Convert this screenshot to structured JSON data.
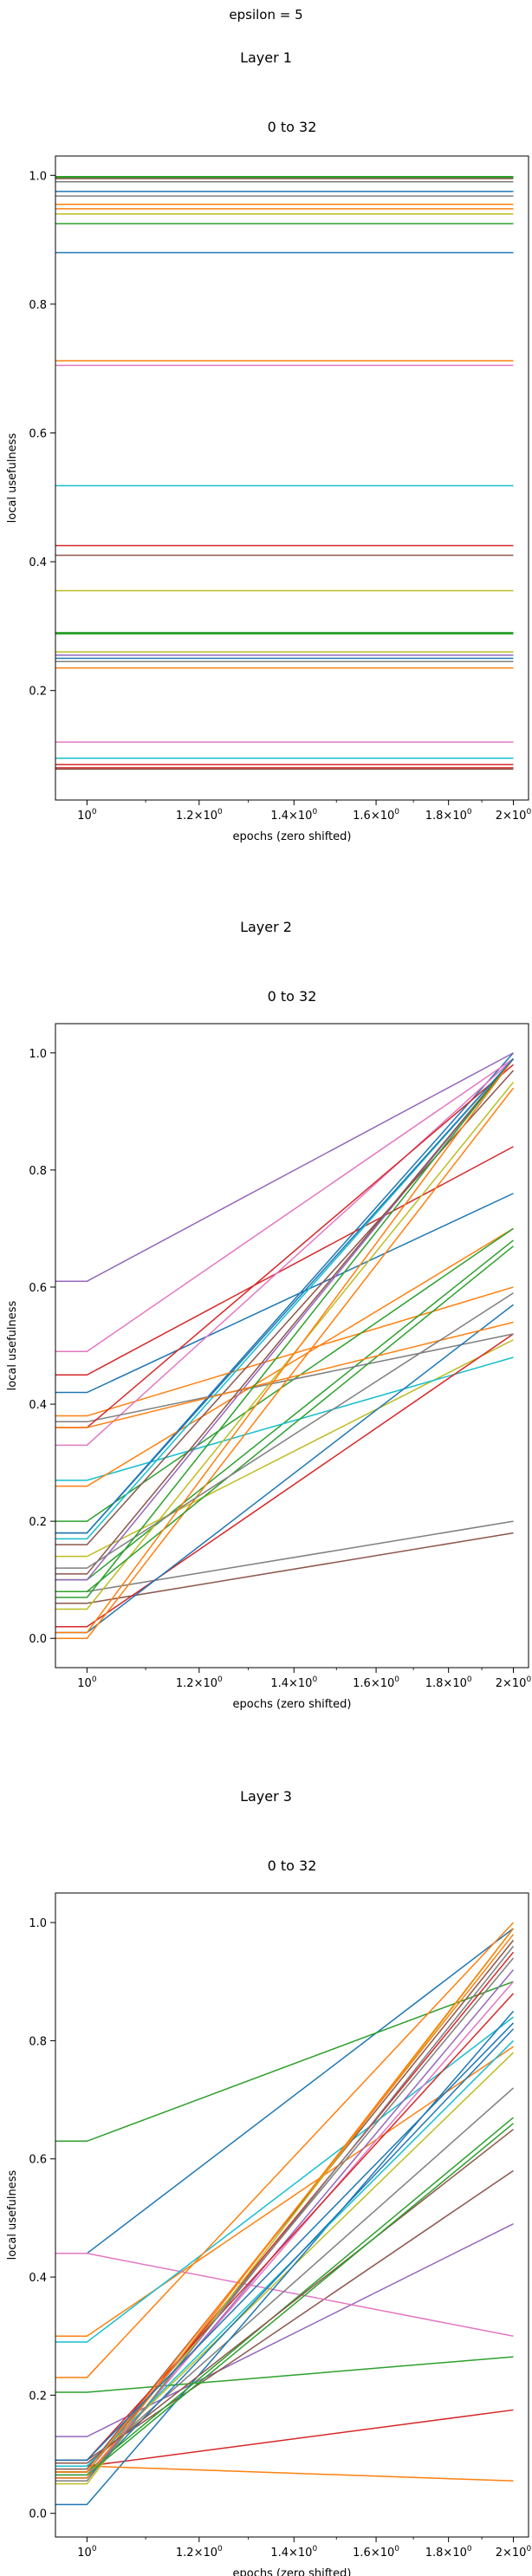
{
  "figure_title": "epsilon = 5",
  "chart_data": [
    {
      "type": "line",
      "suptitle": "Layer 1",
      "title": "0 to 32",
      "xlabel": "epochs (zero shifted)",
      "ylabel": "local usefulness",
      "xscale": "log",
      "xlim": [
        0.95,
        2.05
      ],
      "ylim": [
        0.03,
        1.03
      ],
      "x_ticks": [
        1.0,
        1.2,
        1.4,
        1.6,
        1.8,
        2.0
      ],
      "x_tick_labels": [
        "10^0",
        "1.2×10^0",
        "1.4×10^0",
        "1.6×10^0",
        "1.8×10^0",
        "2×10^0"
      ],
      "y_ticks": [
        0.2,
        0.4,
        0.6,
        0.8,
        1.0
      ],
      "y_tick_labels": [
        "0.2",
        "0.4",
        "0.6",
        "0.8",
        "1.0"
      ],
      "grid": false,
      "x": [
        0.95,
        1.0,
        2.0
      ],
      "series": [
        {
          "color": "#1f77b4",
          "values": [
            0.88,
            0.88,
            0.88
          ]
        },
        {
          "color": "#ff7f0e",
          "values": [
            0.712,
            0.712,
            0.712
          ]
        },
        {
          "color": "#2ca02c",
          "values": [
            0.996,
            0.996,
            0.996
          ]
        },
        {
          "color": "#d62728",
          "values": [
            0.425,
            0.425,
            0.425
          ]
        },
        {
          "color": "#9467bd",
          "values": [
            0.99,
            0.99,
            0.99
          ]
        },
        {
          "color": "#8c564b",
          "values": [
            0.995,
            0.995,
            0.995
          ]
        },
        {
          "color": "#e377c2",
          "values": [
            0.705,
            0.705,
            0.705
          ]
        },
        {
          "color": "#7f7f7f",
          "values": [
            0.245,
            0.245,
            0.245
          ]
        },
        {
          "color": "#bcbd22",
          "values": [
            0.355,
            0.355,
            0.355
          ]
        },
        {
          "color": "#17becf",
          "values": [
            0.518,
            0.518,
            0.518
          ]
        },
        {
          "color": "#1f77b4",
          "values": [
            0.975,
            0.975,
            0.975
          ]
        },
        {
          "color": "#ff7f0e",
          "values": [
            0.955,
            0.955,
            0.955
          ]
        },
        {
          "color": "#2ca02c",
          "values": [
            0.925,
            0.925,
            0.925
          ]
        },
        {
          "color": "#d62728",
          "values": [
            0.08,
            0.08,
            0.08
          ]
        },
        {
          "color": "#9467bd",
          "values": [
            0.255,
            0.255,
            0.255
          ]
        },
        {
          "color": "#8c564b",
          "values": [
            0.41,
            0.41,
            0.41
          ]
        },
        {
          "color": "#e377c2",
          "values": [
            0.12,
            0.12,
            0.12
          ]
        },
        {
          "color": "#7f7f7f",
          "values": [
            0.99,
            0.99,
            0.99
          ]
        },
        {
          "color": "#bcbd22",
          "values": [
            0.94,
            0.94,
            0.94
          ]
        },
        {
          "color": "#17becf",
          "values": [
            0.095,
            0.095,
            0.095
          ]
        },
        {
          "color": "#1f77b4",
          "values": [
            0.25,
            0.25,
            0.25
          ]
        },
        {
          "color": "#ff7f0e",
          "values": [
            0.235,
            0.235,
            0.235
          ]
        },
        {
          "color": "#2ca02c",
          "values": [
            0.288,
            0.288,
            0.288
          ]
        },
        {
          "color": "#d62728",
          "values": [
            0.085,
            0.085,
            0.085
          ]
        },
        {
          "color": "#ff7f0e",
          "values": [
            0.948,
            0.948,
            0.948
          ]
        },
        {
          "color": "#8c564b",
          "values": [
            0.078,
            0.078,
            0.078
          ]
        },
        {
          "color": "#7f7f7f",
          "values": [
            0.968,
            0.968,
            0.968
          ]
        },
        {
          "color": "#2ca02c",
          "values": [
            0.998,
            0.998,
            0.998
          ]
        },
        {
          "color": "#bcbd22",
          "values": [
            0.26,
            0.26,
            0.26
          ]
        },
        {
          "color": "#2ca02c",
          "values": [
            0.29,
            0.29,
            0.29
          ]
        }
      ]
    },
    {
      "type": "line",
      "suptitle": "Layer 2",
      "title": "0 to 32",
      "xlabel": "epochs (zero shifted)",
      "ylabel": "local usefulness",
      "xscale": "log",
      "xlim": [
        0.95,
        2.05
      ],
      "ylim": [
        -0.05,
        1.05
      ],
      "x_ticks": [
        1.0,
        1.2,
        1.4,
        1.6,
        1.8,
        2.0
      ],
      "x_tick_labels": [
        "10^0",
        "1.2×10^0",
        "1.4×10^0",
        "1.6×10^0",
        "1.8×10^0",
        "2×10^0"
      ],
      "y_ticks": [
        0.0,
        0.2,
        0.4,
        0.6,
        0.8,
        1.0
      ],
      "y_tick_labels": [
        "0.0",
        "0.2",
        "0.4",
        "0.6",
        "0.8",
        "1.0"
      ],
      "grid": false,
      "x": [
        0.95,
        1.0,
        2.0
      ],
      "series": [
        {
          "color": "#1f77b4",
          "values": [
            0.18,
            0.18,
            1.0
          ]
        },
        {
          "color": "#ff7f0e",
          "values": [
            0.38,
            0.38,
            0.6
          ]
        },
        {
          "color": "#2ca02c",
          "values": [
            0.1,
            0.1,
            0.68
          ]
        },
        {
          "color": "#d62728",
          "values": [
            0.45,
            0.45,
            0.84
          ]
        },
        {
          "color": "#9467bd",
          "values": [
            0.61,
            0.61,
            1.0
          ]
        },
        {
          "color": "#8c564b",
          "values": [
            0.06,
            0.06,
            0.18
          ]
        },
        {
          "color": "#e377c2",
          "values": [
            0.49,
            0.49,
            0.99
          ]
        },
        {
          "color": "#7f7f7f",
          "values": [
            0.08,
            0.08,
            0.2
          ]
        },
        {
          "color": "#bcbd22",
          "values": [
            0.14,
            0.14,
            0.51
          ]
        },
        {
          "color": "#17becf",
          "values": [
            0.27,
            0.27,
            0.48
          ]
        },
        {
          "color": "#1f77b4",
          "values": [
            0.42,
            0.42,
            0.76
          ]
        },
        {
          "color": "#ff7f0e",
          "values": [
            0.26,
            0.26,
            0.7
          ]
        },
        {
          "color": "#2ca02c",
          "values": [
            0.2,
            0.2,
            0.7
          ]
        },
        {
          "color": "#d62728",
          "values": [
            0.02,
            0.02,
            0.52
          ]
        },
        {
          "color": "#9467bd",
          "values": [
            0.1,
            0.1,
            0.99
          ]
        },
        {
          "color": "#8c564b",
          "values": [
            0.16,
            0.16,
            0.97
          ]
        },
        {
          "color": "#e377c2",
          "values": [
            0.33,
            0.33,
            0.99
          ]
        },
        {
          "color": "#7f7f7f",
          "values": [
            0.37,
            0.37,
            0.52
          ]
        },
        {
          "color": "#bcbd22",
          "values": [
            0.05,
            0.05,
            0.95
          ]
        },
        {
          "color": "#17becf",
          "values": [
            0.17,
            0.17,
            0.99
          ]
        },
        {
          "color": "#1f77b4",
          "values": [
            0.01,
            0.01,
            0.57
          ]
        },
        {
          "color": "#ff7f0e",
          "values": [
            0.0,
            0.0,
            0.94
          ]
        },
        {
          "color": "#2ca02c",
          "values": [
            0.08,
            0.08,
            0.67
          ]
        },
        {
          "color": "#d62728",
          "values": [
            0.36,
            0.36,
            0.98
          ]
        },
        {
          "color": "#ff7f0e",
          "values": [
            0.36,
            0.36,
            0.54
          ]
        },
        {
          "color": "#8c564b",
          "values": [
            0.11,
            0.11,
            0.99
          ]
        },
        {
          "color": "#7f7f7f",
          "values": [
            0.12,
            0.12,
            0.59
          ]
        },
        {
          "color": "#2ca02c",
          "values": [
            0.07,
            0.07,
            0.99
          ]
        },
        {
          "color": "#ff7f0e",
          "values": [
            0.01,
            0.01,
            0.99
          ]
        },
        {
          "color": "#1f77b4",
          "values": [
            0.18,
            0.18,
            0.99
          ]
        }
      ]
    },
    {
      "type": "line",
      "suptitle": "Layer 3",
      "title": "0 to 32",
      "xlabel": "epochs (zero shifted)",
      "ylabel": "local usefulness",
      "xscale": "log",
      "xlim": [
        0.95,
        2.05
      ],
      "ylim": [
        -0.04,
        1.05
      ],
      "x_ticks": [
        1.0,
        1.2,
        1.4,
        1.6,
        1.8,
        2.0
      ],
      "x_tick_labels": [
        "10^0",
        "1.2×10^0",
        "1.4×10^0",
        "1.6×10^0",
        "1.8×10^0",
        "2×10^0"
      ],
      "y_ticks": [
        0.0,
        0.2,
        0.4,
        0.6,
        0.8,
        1.0
      ],
      "y_tick_labels": [
        "0.0",
        "0.2",
        "0.4",
        "0.6",
        "0.8",
        "1.0"
      ],
      "grid": false,
      "x": [
        0.95,
        1.0,
        2.0
      ],
      "series": [
        {
          "color": "#1f77b4",
          "values": [
            0.44,
            0.44,
            0.99
          ]
        },
        {
          "color": "#ff7f0e",
          "values": [
            0.3,
            0.3,
            0.79
          ]
        },
        {
          "color": "#2ca02c",
          "values": [
            0.63,
            0.63,
            0.9
          ]
        },
        {
          "color": "#d62728",
          "values": [
            0.08,
            0.08,
            0.175
          ]
        },
        {
          "color": "#9467bd",
          "values": [
            0.13,
            0.13,
            0.49
          ]
        },
        {
          "color": "#8c564b",
          "values": [
            0.09,
            0.09,
            0.58
          ]
        },
        {
          "color": "#e377c2",
          "values": [
            0.44,
            0.44,
            0.3
          ]
        },
        {
          "color": "#7f7f7f",
          "values": [
            0.08,
            0.08,
            0.72
          ]
        },
        {
          "color": "#bcbd22",
          "values": [
            0.08,
            0.08,
            0.78
          ]
        },
        {
          "color": "#17becf",
          "values": [
            0.29,
            0.29,
            0.84
          ]
        },
        {
          "color": "#1f77b4",
          "values": [
            0.015,
            0.015,
            0.85
          ]
        },
        {
          "color": "#ff7f0e",
          "values": [
            0.08,
            0.08,
            0.055
          ]
        },
        {
          "color": "#2ca02c",
          "values": [
            0.205,
            0.205,
            0.265
          ]
        },
        {
          "color": "#d62728",
          "values": [
            0.07,
            0.07,
            0.95
          ]
        },
        {
          "color": "#9467bd",
          "values": [
            0.06,
            0.06,
            0.92
          ]
        },
        {
          "color": "#8c564b",
          "values": [
            0.075,
            0.075,
            0.97
          ]
        },
        {
          "color": "#e377c2",
          "values": [
            0.065,
            0.065,
            0.9
          ]
        },
        {
          "color": "#7f7f7f",
          "values": [
            0.07,
            0.07,
            0.94
          ]
        },
        {
          "color": "#bcbd22",
          "values": [
            0.05,
            0.05,
            0.99
          ]
        },
        {
          "color": "#17becf",
          "values": [
            0.08,
            0.08,
            0.8
          ]
        },
        {
          "color": "#1f77b4",
          "values": [
            0.06,
            0.06,
            0.82
          ]
        },
        {
          "color": "#ff7f0e",
          "values": [
            0.23,
            0.23,
            1.0
          ]
        },
        {
          "color": "#2ca02c",
          "values": [
            0.07,
            0.07,
            0.67
          ]
        },
        {
          "color": "#d62728",
          "values": [
            0.09,
            0.09,
            0.88
          ]
        },
        {
          "color": "#ff7f0e",
          "values": [
            0.06,
            0.06,
            0.99
          ]
        },
        {
          "color": "#8c564b",
          "values": [
            0.085,
            0.085,
            0.65
          ]
        },
        {
          "color": "#7f7f7f",
          "values": [
            0.055,
            0.055,
            0.96
          ]
        },
        {
          "color": "#2ca02c",
          "values": [
            0.065,
            0.065,
            0.66
          ]
        },
        {
          "color": "#ff7f0e",
          "values": [
            0.07,
            0.07,
            0.98
          ]
        },
        {
          "color": "#1f77b4",
          "values": [
            0.09,
            0.09,
            0.83
          ]
        }
      ]
    }
  ]
}
